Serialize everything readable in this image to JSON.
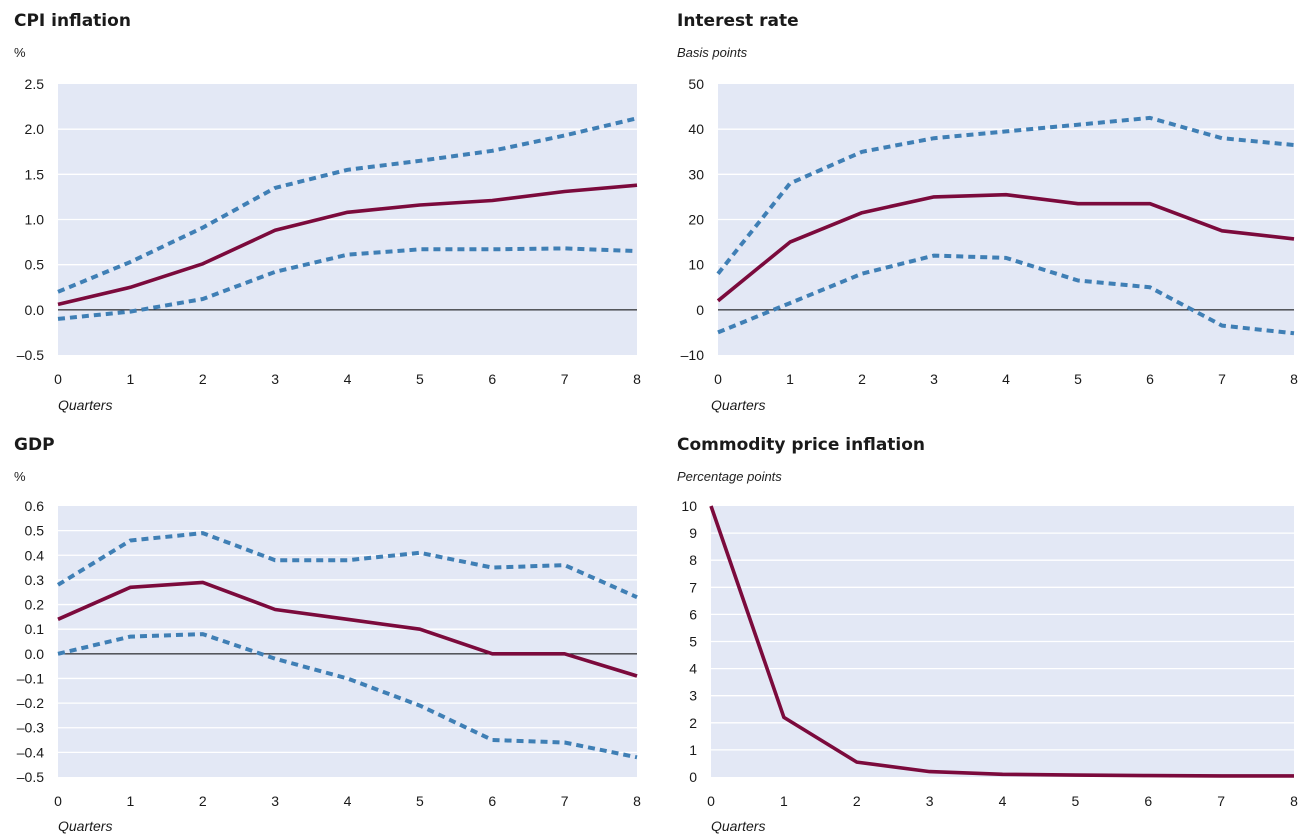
{
  "colors": {
    "background": "#e3e8f5",
    "grid": "#ffffff",
    "zero_line": "#000000",
    "main_line": "#7b0a3c",
    "band_line": "#3f7fb5"
  },
  "chart_data": [
    {
      "type": "line",
      "title": "CPI inflation",
      "unit": "%",
      "xlabel": "Quarters",
      "x": [
        0,
        1,
        2,
        3,
        4,
        5,
        6,
        7,
        8
      ],
      "ylim": [
        -0.5,
        2.5
      ],
      "yticks": [
        "2.5",
        "2.0",
        "1.5",
        "1.0",
        "0.5",
        "0.0",
        "–0.5"
      ],
      "ytick_values": [
        2.5,
        2.0,
        1.5,
        1.0,
        0.5,
        0.0,
        -0.5
      ],
      "series": [
        {
          "role": "upper",
          "style": "dotted",
          "values": [
            0.2,
            0.53,
            0.91,
            1.35,
            1.55,
            1.65,
            1.76,
            1.93,
            2.12
          ]
        },
        {
          "role": "central",
          "style": "solid",
          "values": [
            0.06,
            0.25,
            0.51,
            0.88,
            1.08,
            1.16,
            1.21,
            1.31,
            1.38
          ]
        },
        {
          "role": "lower",
          "style": "dotted",
          "values": [
            -0.1,
            -0.02,
            0.12,
            0.42,
            0.61,
            0.67,
            0.67,
            0.68,
            0.65
          ]
        }
      ]
    },
    {
      "type": "line",
      "title": "Interest rate",
      "unit": "Basis points",
      "xlabel": "Quarters",
      "x": [
        0,
        1,
        2,
        3,
        4,
        5,
        6,
        7,
        8
      ],
      "ylim": [
        -10,
        50
      ],
      "yticks": [
        "50",
        "40",
        "30",
        "20",
        "10",
        "0",
        "–10"
      ],
      "ytick_values": [
        50,
        40,
        30,
        20,
        10,
        0,
        -10
      ],
      "series": [
        {
          "role": "upper",
          "style": "dotted",
          "values": [
            8,
            28,
            35,
            38,
            39.5,
            41,
            42.5,
            38,
            36.5
          ]
        },
        {
          "role": "central",
          "style": "solid",
          "values": [
            2,
            15,
            21.5,
            25,
            25.5,
            23.5,
            23.5,
            17.5,
            15.7
          ]
        },
        {
          "role": "lower",
          "style": "dotted",
          "values": [
            -5,
            1.5,
            8,
            12,
            11.5,
            6.5,
            5,
            -3.5,
            -5.2
          ]
        }
      ]
    },
    {
      "type": "line",
      "title": "GDP",
      "unit": "%",
      "xlabel": "Quarters",
      "x": [
        0,
        1,
        2,
        3,
        4,
        5,
        6,
        7,
        8
      ],
      "ylim": [
        -0.5,
        0.6
      ],
      "yticks": [
        "0.6",
        "0.5",
        "0.4",
        "0.3",
        "0.2",
        "0.1",
        "0.0",
        "–0.1",
        "–0.2",
        "–0.3",
        "–0.4",
        "–0.5"
      ],
      "ytick_values": [
        0.6,
        0.5,
        0.4,
        0.3,
        0.2,
        0.1,
        0.0,
        -0.1,
        -0.2,
        -0.3,
        -0.4,
        -0.5
      ],
      "series": [
        {
          "role": "upper",
          "style": "dotted",
          "values": [
            0.28,
            0.46,
            0.49,
            0.38,
            0.38,
            0.41,
            0.35,
            0.36,
            0.23
          ]
        },
        {
          "role": "central",
          "style": "solid",
          "values": [
            0.14,
            0.27,
            0.29,
            0.18,
            0.14,
            0.1,
            0.0,
            0.0,
            -0.09
          ]
        },
        {
          "role": "lower",
          "style": "dotted",
          "values": [
            0.0,
            0.07,
            0.08,
            -0.02,
            -0.1,
            -0.21,
            -0.35,
            -0.36,
            -0.42
          ]
        }
      ]
    },
    {
      "type": "line",
      "title": "Commodity price inflation",
      "unit": "Percentage points",
      "xlabel": "Quarters",
      "x": [
        0,
        1,
        2,
        3,
        4,
        5,
        6,
        7,
        8
      ],
      "ylim": [
        0,
        10
      ],
      "yticks": [
        "10",
        "9",
        "8",
        "7",
        "6",
        "5",
        "4",
        "3",
        "2",
        "1",
        "0"
      ],
      "ytick_values": [
        10,
        9,
        8,
        7,
        6,
        5,
        4,
        3,
        2,
        1,
        0
      ],
      "series": [
        {
          "role": "central",
          "style": "solid",
          "values": [
            10,
            2.2,
            0.55,
            0.2,
            0.1,
            0.07,
            0.05,
            0.04,
            0.04
          ]
        }
      ]
    }
  ]
}
